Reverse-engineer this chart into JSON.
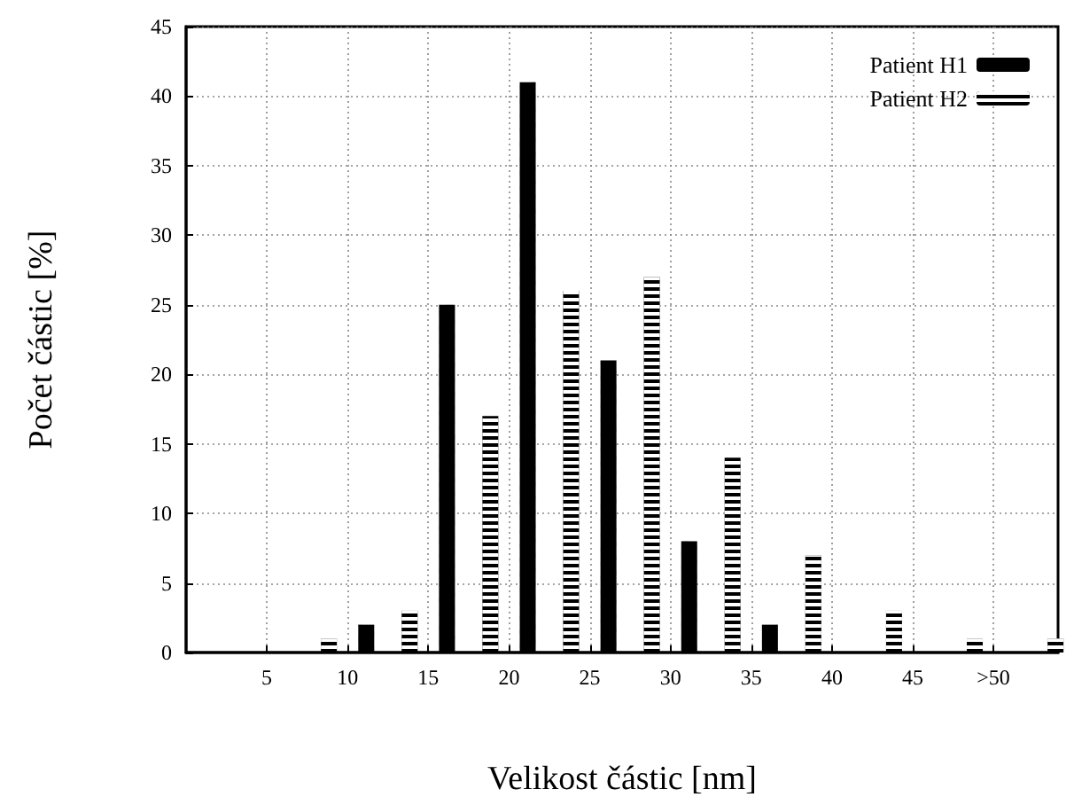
{
  "chart_data": {
    "type": "bar",
    "xlabel": "Velikost částic [nm]",
    "ylabel": "Počet částic [%]",
    "xlim": [
      0,
      54
    ],
    "xticks": [
      5,
      10,
      15,
      20,
      25,
      30,
      35,
      40,
      45,
      {
        "value": 50,
        "label": ">50"
      }
    ],
    "ylim": [
      0,
      45
    ],
    "yticks": [
      0,
      5,
      10,
      15,
      20,
      25,
      30,
      35,
      40,
      45
    ],
    "grid": true,
    "legend": "top right",
    "series": [
      {
        "name": "Patient H1",
        "color": "#000000",
        "x": [
          11.7,
          16.7,
          21.7,
          26.7,
          31.7,
          36.7
        ],
        "values": [
          2,
          25,
          41,
          21,
          8,
          2
        ]
      },
      {
        "name": "Patient H2",
        "color": "#000000",
        "x": [
          8.3,
          13.3,
          18.3,
          23.3,
          28.3,
          33.3,
          38.3,
          43.3,
          48.3,
          53.3
        ],
        "values": [
          1,
          3,
          17,
          26,
          27,
          14,
          7,
          3,
          1,
          1
        ]
      }
    ]
  }
}
